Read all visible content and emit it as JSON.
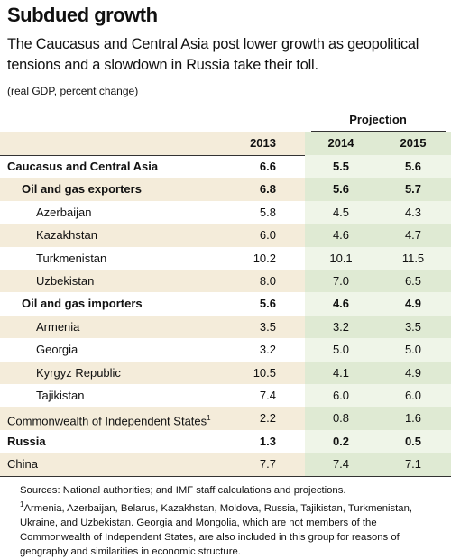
{
  "header": {
    "title": "Subdued growth",
    "subtitle": "The Caucasus and Central Asia post lower growth as geopolitical tensions and a slowdown in Russia take their toll.",
    "unit_note": "(real GDP, percent change)"
  },
  "table": {
    "group_header": "Projection",
    "columns": [
      "2013",
      "2014",
      "2015"
    ],
    "rows": [
      {
        "label": "Caucasus and Central Asia",
        "values": [
          "6.6",
          "5.5",
          "5.6"
        ],
        "bold": true,
        "indent": 0
      },
      {
        "label": "Oil and gas exporters",
        "values": [
          "6.8",
          "5.6",
          "5.7"
        ],
        "bold": true,
        "indent": 1
      },
      {
        "label": "Azerbaijan",
        "values": [
          "5.8",
          "4.5",
          "4.3"
        ],
        "bold": false,
        "indent": 2
      },
      {
        "label": "Kazakhstan",
        "values": [
          "6.0",
          "4.6",
          "4.7"
        ],
        "bold": false,
        "indent": 2
      },
      {
        "label": "Turkmenistan",
        "values": [
          "10.2",
          "10.1",
          "11.5"
        ],
        "bold": false,
        "indent": 2
      },
      {
        "label": "Uzbekistan",
        "values": [
          "8.0",
          "7.0",
          "6.5"
        ],
        "bold": false,
        "indent": 2
      },
      {
        "label": "Oil and gas importers",
        "values": [
          "5.6",
          "4.6",
          "4.9"
        ],
        "bold": true,
        "indent": 1
      },
      {
        "label": "Armenia",
        "values": [
          "3.5",
          "3.2",
          "3.5"
        ],
        "bold": false,
        "indent": 2
      },
      {
        "label": "Georgia",
        "values": [
          "3.2",
          "5.0",
          "5.0"
        ],
        "bold": false,
        "indent": 2
      },
      {
        "label": "Kyrgyz Republic",
        "values": [
          "10.5",
          "4.1",
          "4.9"
        ],
        "bold": false,
        "indent": 2
      },
      {
        "label": "Tajikistan",
        "values": [
          "7.4",
          "6.0",
          "6.0"
        ],
        "bold": false,
        "indent": 2
      },
      {
        "label": "Commonwealth of Independent States",
        "footnote": "1",
        "values": [
          "2.2",
          "0.8",
          "1.6"
        ],
        "bold": false,
        "indent": 0
      },
      {
        "label": "Russia",
        "values": [
          "1.3",
          "0.2",
          "0.5"
        ],
        "bold": true,
        "indent": 0
      },
      {
        "label": "China",
        "values": [
          "7.7",
          "7.4",
          "7.1"
        ],
        "bold": false,
        "indent": 0
      }
    ]
  },
  "notes": {
    "sources": "Sources: National authorities; and IMF staff calculations and projections.",
    "footnote_marker": "1",
    "footnote": "Armenia, Azerbaijan, Belarus, Kazakhstan, Moldova, Russia, Tajikistan, Turkmenistan, Ukraine, and Uzbekistan. Georgia and Mongolia, which are not members of the Commonwealth of Independent States, are also included in this group for reasons of geography and similarities in economic structure."
  }
}
